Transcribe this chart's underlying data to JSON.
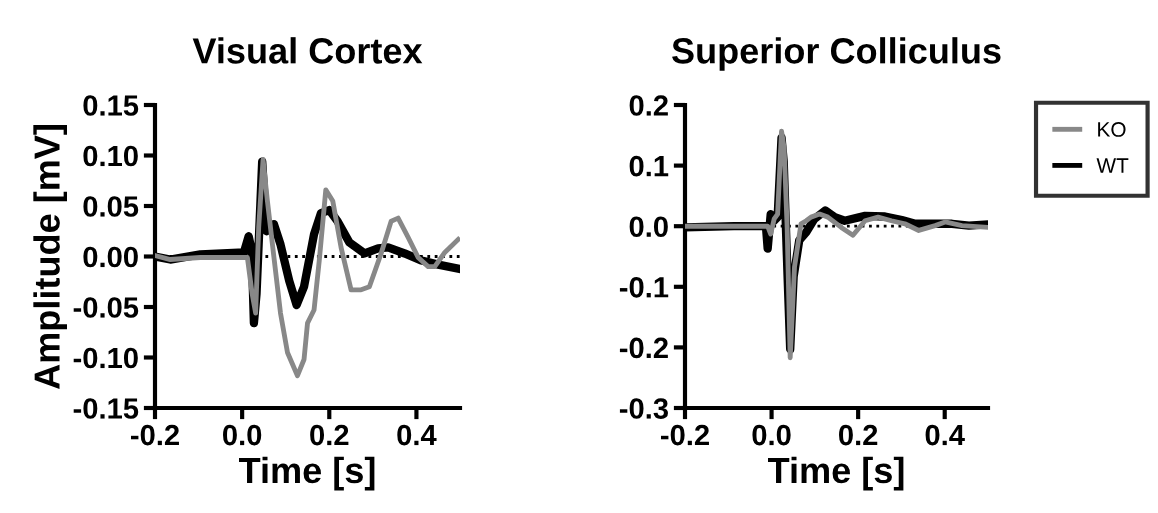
{
  "chart_data": [
    {
      "type": "line",
      "title": "Visual Cortex",
      "xlabel": "Time [s]",
      "ylabel": "Amplitude [mV]",
      "xlim": [
        -0.2,
        0.5
      ],
      "ylim": [
        -0.15,
        0.15
      ],
      "xticks": [
        {
          "value": -0.2,
          "label": "-0.2"
        },
        {
          "value": 0.0,
          "label": "0.0"
        },
        {
          "value": 0.2,
          "label": "0.2"
        },
        {
          "value": 0.4,
          "label": "0.4"
        }
      ],
      "yticks": [
        {
          "value": -0.15,
          "label": "-0.15"
        },
        {
          "value": -0.1,
          "label": "-0.10"
        },
        {
          "value": -0.05,
          "label": "-0.05"
        },
        {
          "value": 0.0,
          "label": "0.00"
        },
        {
          "value": 0.05,
          "label": "0.05"
        },
        {
          "value": 0.1,
          "label": "0.10"
        },
        {
          "value": 0.15,
          "label": "0.15"
        }
      ],
      "grid": false,
      "legend": "right",
      "line_style": "solid",
      "marker": "none",
      "ref_lines": [
        {
          "axis": "y",
          "value": 0.0,
          "label": null,
          "color": "#000000",
          "line_style": "dotted"
        }
      ],
      "series": [
        {
          "name": "KO",
          "color": "#888888",
          "x": [
            -0.2,
            -0.165,
            -0.096,
            0.012,
            0.023,
            0.031,
            0.038,
            0.048,
            0.058,
            0.073,
            0.088,
            0.104,
            0.127,
            0.142,
            0.15,
            0.165,
            0.177,
            0.192,
            0.208,
            0.227,
            0.25,
            0.273,
            0.292,
            0.319,
            0.342,
            0.358,
            0.381,
            0.404,
            0.427,
            0.442,
            0.465,
            0.496
          ],
          "values": [
            0.001,
            -0.003,
            -0.001,
            -0.001,
            -0.037,
            -0.056,
            0.029,
            0.096,
            0.055,
            -0.001,
            -0.056,
            -0.095,
            -0.118,
            -0.102,
            -0.066,
            -0.053,
            -0.004,
            0.066,
            0.055,
            0.009,
            -0.033,
            -0.033,
            -0.03,
            0.003,
            0.035,
            0.038,
            0.019,
            -0.001,
            -0.01,
            -0.01,
            0.004,
            0.017
          ]
        },
        {
          "name": "WT",
          "color": "#000000",
          "x": [
            -0.2,
            -0.165,
            -0.096,
            0.004,
            0.015,
            0.022,
            0.027,
            0.033,
            0.046,
            0.056,
            0.073,
            0.088,
            0.108,
            0.125,
            0.142,
            0.165,
            0.181,
            0.2,
            0.219,
            0.246,
            0.281,
            0.312,
            0.335,
            0.373,
            0.412,
            0.45,
            0.496
          ],
          "values": [
            0.0,
            -0.003,
            0.002,
            0.004,
            0.02,
            0.006,
            -0.066,
            -0.037,
            0.094,
            0.025,
            0.032,
            0.012,
            -0.024,
            -0.048,
            -0.03,
            0.022,
            0.043,
            0.046,
            0.035,
            0.014,
            0.003,
            0.008,
            0.009,
            0.003,
            -0.004,
            -0.008,
            -0.012
          ]
        }
      ]
    },
    {
      "type": "line",
      "title": "Superior Colliculus",
      "xlabel": "Time [s]",
      "xlim": [
        -0.2,
        0.5
      ],
      "ylim": [
        -0.3,
        0.2
      ],
      "xticks": [
        {
          "value": -0.2,
          "label": "-0.2"
        },
        {
          "value": 0.0,
          "label": "0.0"
        },
        {
          "value": 0.2,
          "label": "0.2"
        },
        {
          "value": 0.4,
          "label": "0.4"
        }
      ],
      "yticks": [
        {
          "value": -0.3,
          "label": "-0.3"
        },
        {
          "value": -0.2,
          "label": "-0.2"
        },
        {
          "value": -0.1,
          "label": "-0.1"
        },
        {
          "value": 0.0,
          "label": "0.0"
        },
        {
          "value": 0.1,
          "label": "0.1"
        },
        {
          "value": 0.2,
          "label": "0.2"
        }
      ],
      "grid": false,
      "line_style": "solid",
      "marker": "none",
      "ref_lines": [
        {
          "axis": "y",
          "value": 0.0,
          "label": null,
          "color": "#000000",
          "line_style": "dotted"
        }
      ],
      "series": [
        {
          "color": "#888888",
          "x": [
            -0.2,
            -0.087,
            -0.009,
            -0.002,
            0.006,
            0.014,
            0.023,
            0.029,
            0.036,
            0.043,
            0.053,
            0.068,
            0.08,
            0.091,
            0.111,
            0.13,
            0.161,
            0.188,
            0.216,
            0.246,
            0.277,
            0.308,
            0.34,
            0.378,
            0.401,
            0.44,
            0.5
          ],
          "values": [
            0.0,
            0.0,
            0.0,
            -0.013,
            0.012,
            0.02,
            0.157,
            0.129,
            -0.002,
            -0.217,
            -0.067,
            0.004,
            0.009,
            0.015,
            0.02,
            0.015,
            -0.002,
            -0.015,
            0.009,
            0.015,
            0.009,
            0.004,
            -0.007,
            0.001,
            0.007,
            0.001,
            -0.002
          ]
        },
        {
          "color": "#000000",
          "x": [
            -0.2,
            -0.087,
            -0.013,
            -0.009,
            -0.002,
            0.006,
            0.014,
            0.023,
            0.028,
            0.037,
            0.043,
            0.051,
            0.064,
            0.08,
            0.099,
            0.124,
            0.146,
            0.169,
            0.216,
            0.262,
            0.301,
            0.332,
            0.378,
            0.417,
            0.456,
            0.5
          ],
          "values": [
            -0.002,
            0.0,
            0.0,
            -0.037,
            0.02,
            0.009,
            0.015,
            0.146,
            0.107,
            -0.083,
            -0.203,
            -0.083,
            -0.023,
            -0.01,
            0.012,
            0.026,
            0.015,
            0.009,
            0.017,
            0.016,
            0.01,
            0.004,
            0.004,
            0.004,
            0.001,
            0.003
          ]
        }
      ]
    }
  ]
}
